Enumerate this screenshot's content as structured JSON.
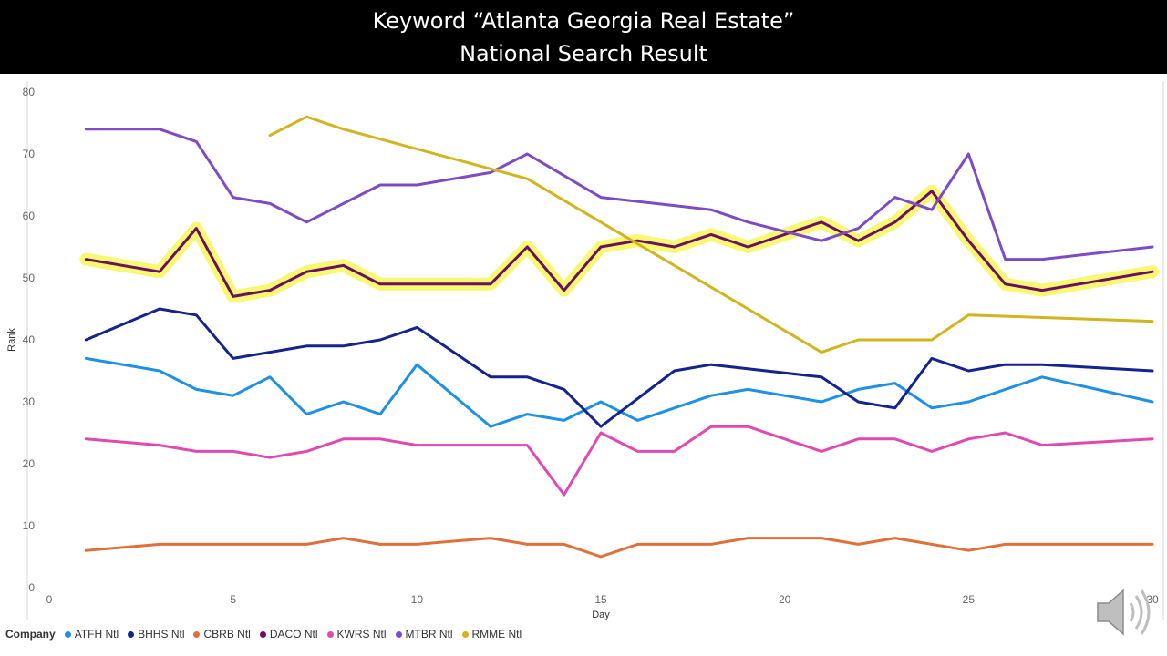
{
  "title_line1": "Keyword “Atlanta Georgia Real Estate”",
  "title_line2": "National Search Result",
  "legend_title": "Company",
  "audio_icon": "speaker-icon",
  "chart_data": {
    "type": "line",
    "xlabel": "Day",
    "ylabel": "Rank",
    "xlim": [
      0,
      30
    ],
    "ylim": [
      0,
      80
    ],
    "xticks": [
      0,
      5,
      10,
      15,
      20,
      25,
      30
    ],
    "yticks": [
      0,
      10,
      20,
      30,
      40,
      50,
      60,
      70,
      80
    ],
    "grid": false,
    "legend_position": "bottom",
    "highlight": {
      "color": "#f5f542",
      "series": "DACO Ntl",
      "x_range": [
        1,
        30
      ]
    },
    "series": [
      {
        "name": "ATFH Ntl",
        "color": "#1e90e6",
        "x": [
          1,
          3,
          4,
          5,
          6,
          7,
          8,
          9,
          10,
          12,
          13,
          14,
          15,
          16,
          17,
          18,
          19,
          21,
          22,
          23,
          24,
          25,
          27,
          30
        ],
        "y": [
          37,
          35,
          32,
          31,
          34,
          28,
          30,
          28,
          36,
          26,
          28,
          27,
          30,
          27,
          29,
          31,
          32,
          30,
          32,
          33,
          29,
          30,
          34,
          30
        ]
      },
      {
        "name": "BHHS Ntl",
        "color": "#14248c",
        "x": [
          1,
          3,
          4,
          5,
          7,
          8,
          9,
          10,
          12,
          13,
          14,
          15,
          17,
          18,
          21,
          22,
          23,
          24,
          25,
          26,
          27,
          30
        ],
        "y": [
          40,
          45,
          44,
          37,
          39,
          39,
          40,
          42,
          34,
          34,
          32,
          26,
          35,
          36,
          34,
          30,
          29,
          37,
          35,
          36,
          36,
          35
        ]
      },
      {
        "name": "CBRB Ntl",
        "color": "#e0703a",
        "x": [
          1,
          3,
          4,
          5,
          7,
          8,
          9,
          10,
          12,
          13,
          14,
          15,
          16,
          17,
          18,
          19,
          21,
          22,
          23,
          25,
          26,
          27,
          30
        ],
        "y": [
          6,
          7,
          7,
          7,
          7,
          8,
          7,
          7,
          8,
          7,
          7,
          5,
          7,
          7,
          7,
          8,
          8,
          7,
          8,
          6,
          7,
          7,
          7
        ]
      },
      {
        "name": "DACO Ntl",
        "color": "#6a0f63",
        "x": [
          1,
          3,
          4,
          5,
          6,
          7,
          8,
          9,
          10,
          11,
          12,
          13,
          14,
          15,
          16,
          17,
          18,
          19,
          21,
          22,
          23,
          24,
          25,
          26,
          27,
          30
        ],
        "y": [
          53,
          51,
          58,
          47,
          48,
          51,
          52,
          49,
          49,
          49,
          49,
          55,
          48,
          55,
          56,
          55,
          57,
          55,
          59,
          56,
          59,
          64,
          56,
          49,
          48,
          51
        ]
      },
      {
        "name": "KWRS Ntl",
        "color": "#e04ab0",
        "x": [
          1,
          3,
          4,
          5,
          6,
          7,
          8,
          9,
          10,
          12,
          13,
          14,
          15,
          16,
          17,
          18,
          19,
          21,
          22,
          23,
          24,
          25,
          26,
          27,
          30
        ],
        "y": [
          24,
          23,
          22,
          22,
          21,
          22,
          24,
          24,
          23,
          23,
          23,
          15,
          25,
          22,
          22,
          26,
          26,
          22,
          24,
          24,
          22,
          24,
          25,
          23,
          24
        ]
      },
      {
        "name": "MTBR Ntl",
        "color": "#7d4cc4",
        "x": [
          1,
          3,
          4,
          5,
          6,
          7,
          9,
          10,
          12,
          13,
          15,
          18,
          19,
          21,
          22,
          23,
          24,
          25,
          26,
          27,
          30
        ],
        "y": [
          74,
          74,
          72,
          63,
          62,
          59,
          65,
          65,
          67,
          70,
          63,
          61,
          59,
          56,
          58,
          63,
          61,
          70,
          53,
          53,
          55
        ]
      },
      {
        "name": "RMME Ntl",
        "color": "#d2b41e",
        "x": [
          6,
          7,
          8,
          13,
          21,
          22,
          23,
          24,
          25,
          30
        ],
        "y": [
          73,
          76,
          74,
          66,
          38,
          40,
          40,
          40,
          44,
          43
        ]
      }
    ]
  }
}
